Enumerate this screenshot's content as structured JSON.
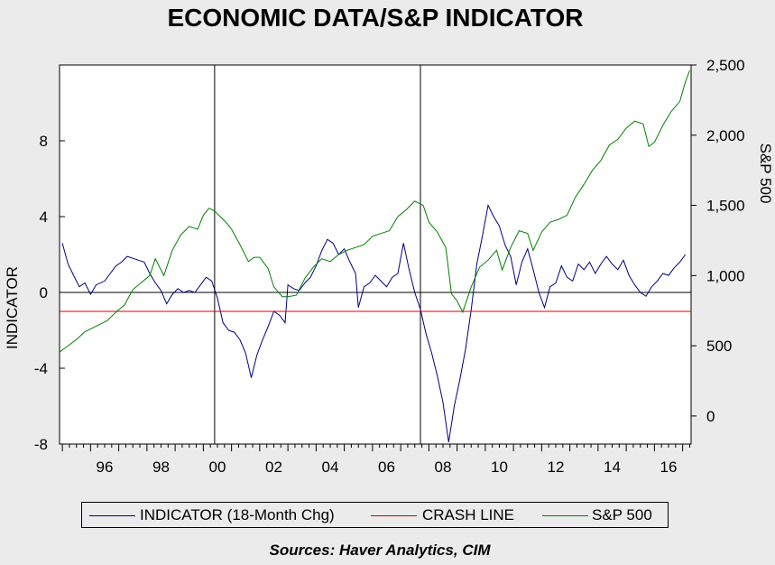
{
  "chart_data": {
    "type": "line",
    "title": "ECONOMIC DATA/S&P INDICATOR",
    "source": "Sources:  Haver Analytics, CIM",
    "left_axis": {
      "label": "INDICATOR",
      "range": [
        -8,
        12
      ],
      "ticks": [
        -8,
        -4,
        0,
        4,
        8
      ],
      "tick_labels": [
        "-8",
        "-4",
        "0",
        "4",
        "8"
      ]
    },
    "right_axis": {
      "label": "S&P 500",
      "range": [
        -200,
        2500
      ],
      "ticks": [
        0,
        500,
        1000,
        1500,
        2000,
        2500
      ],
      "tick_labels": [
        "0",
        "500",
        "1,000",
        "1,500",
        "2,000",
        "2,500"
      ]
    },
    "x_axis": {
      "range": [
        1994.9,
        2017.3
      ],
      "tick_years": [
        1996,
        1998,
        2000,
        2002,
        2004,
        2006,
        2008,
        2010,
        2012,
        2014,
        2016
      ],
      "tick_labels": [
        "96",
        "98",
        "00",
        "02",
        "04",
        "06",
        "08",
        "10",
        "12",
        "14",
        "16"
      ]
    },
    "vertical_lines": [
      2000.4,
      2007.7
    ],
    "zero_line": 0,
    "grid": false,
    "legend_position": "bottom",
    "series": [
      {
        "name": "INDICATOR (18-Month Chg)",
        "axis": "left",
        "color": "#000080",
        "points": [
          [
            1995.0,
            2.6
          ],
          [
            1995.2,
            1.5
          ],
          [
            1995.4,
            0.9
          ],
          [
            1995.6,
            0.3
          ],
          [
            1995.8,
            0.5
          ],
          [
            1996.0,
            -0.1
          ],
          [
            1996.2,
            0.4
          ],
          [
            1996.5,
            0.6
          ],
          [
            1996.7,
            1.0
          ],
          [
            1996.9,
            1.4
          ],
          [
            1997.1,
            1.6
          ],
          [
            1997.3,
            1.9
          ],
          [
            1997.5,
            1.8
          ],
          [
            1997.7,
            1.7
          ],
          [
            1997.9,
            1.6
          ],
          [
            1998.1,
            1.0
          ],
          [
            1998.3,
            0.5
          ],
          [
            1998.5,
            0.1
          ],
          [
            1998.7,
            -0.6
          ],
          [
            1998.9,
            -0.1
          ],
          [
            1999.1,
            0.2
          ],
          [
            1999.3,
            0.0
          ],
          [
            1999.5,
            0.1
          ],
          [
            1999.7,
            0.0
          ],
          [
            1999.9,
            0.4
          ],
          [
            2000.1,
            0.8
          ],
          [
            2000.3,
            0.6
          ],
          [
            2000.5,
            -0.3
          ],
          [
            2000.7,
            -1.6
          ],
          [
            2000.9,
            -2.0
          ],
          [
            2001.1,
            -2.1
          ],
          [
            2001.3,
            -2.5
          ],
          [
            2001.5,
            -3.2
          ],
          [
            2001.7,
            -4.5
          ],
          [
            2001.9,
            -3.3
          ],
          [
            2002.1,
            -2.5
          ],
          [
            2002.3,
            -1.8
          ],
          [
            2002.5,
            -1.0
          ],
          [
            2002.7,
            -1.2
          ],
          [
            2002.9,
            -1.6
          ],
          [
            2003.0,
            0.4
          ],
          [
            2003.2,
            0.2
          ],
          [
            2003.4,
            0.1
          ],
          [
            2003.6,
            0.5
          ],
          [
            2003.8,
            0.8
          ],
          [
            2004.0,
            1.4
          ],
          [
            2004.2,
            2.2
          ],
          [
            2004.4,
            2.8
          ],
          [
            2004.6,
            2.6
          ],
          [
            2004.8,
            2.0
          ],
          [
            2005.0,
            2.3
          ],
          [
            2005.2,
            1.6
          ],
          [
            2005.4,
            1.0
          ],
          [
            2005.5,
            -0.8
          ],
          [
            2005.7,
            0.3
          ],
          [
            2005.9,
            0.5
          ],
          [
            2006.1,
            0.9
          ],
          [
            2006.3,
            0.6
          ],
          [
            2006.5,
            0.3
          ],
          [
            2006.7,
            0.8
          ],
          [
            2006.9,
            1.0
          ],
          [
            2007.1,
            2.6
          ],
          [
            2007.3,
            1.2
          ],
          [
            2007.5,
            0.0
          ],
          [
            2007.7,
            -0.9
          ],
          [
            2007.9,
            -2.2
          ],
          [
            2008.1,
            -3.2
          ],
          [
            2008.3,
            -4.4
          ],
          [
            2008.5,
            -5.8
          ],
          [
            2008.7,
            -7.9
          ],
          [
            2008.9,
            -6.0
          ],
          [
            2009.1,
            -4.6
          ],
          [
            2009.3,
            -3.0
          ],
          [
            2009.5,
            -0.9
          ],
          [
            2009.7,
            1.5
          ],
          [
            2009.9,
            3.0
          ],
          [
            2010.1,
            4.6
          ],
          [
            2010.3,
            4.0
          ],
          [
            2010.5,
            3.5
          ],
          [
            2010.7,
            2.5
          ],
          [
            2010.9,
            1.9
          ],
          [
            2011.1,
            0.4
          ],
          [
            2011.3,
            1.6
          ],
          [
            2011.5,
            2.3
          ],
          [
            2011.7,
            1.2
          ],
          [
            2011.9,
            0.0
          ],
          [
            2012.1,
            -0.8
          ],
          [
            2012.3,
            0.3
          ],
          [
            2012.5,
            0.5
          ],
          [
            2012.7,
            1.4
          ],
          [
            2012.9,
            0.8
          ],
          [
            2013.1,
            0.6
          ],
          [
            2013.3,
            1.5
          ],
          [
            2013.5,
            1.2
          ],
          [
            2013.7,
            1.6
          ],
          [
            2013.9,
            1.0
          ],
          [
            2014.1,
            1.5
          ],
          [
            2014.3,
            1.9
          ],
          [
            2014.5,
            1.5
          ],
          [
            2014.7,
            1.2
          ],
          [
            2014.9,
            1.7
          ],
          [
            2015.1,
            0.9
          ],
          [
            2015.3,
            0.4
          ],
          [
            2015.5,
            0.0
          ],
          [
            2015.7,
            -0.2
          ],
          [
            2015.9,
            0.3
          ],
          [
            2016.1,
            0.6
          ],
          [
            2016.3,
            1.0
          ],
          [
            2016.5,
            0.9
          ],
          [
            2016.7,
            1.3
          ],
          [
            2016.9,
            1.6
          ],
          [
            2017.1,
            2.0
          ]
        ]
      },
      {
        "name": "CRASH LINE",
        "axis": "left",
        "color": "#d40000",
        "constant": -1.0
      },
      {
        "name": "S&P 500",
        "axis": "right",
        "color": "#008000",
        "points": [
          [
            1994.9,
            455
          ],
          [
            1995.2,
            500
          ],
          [
            1995.5,
            545
          ],
          [
            1995.8,
            600
          ],
          [
            1996.0,
            620
          ],
          [
            1996.3,
            650
          ],
          [
            1996.6,
            680
          ],
          [
            1996.9,
            740
          ],
          [
            1997.2,
            790
          ],
          [
            1997.5,
            900
          ],
          [
            1997.8,
            950
          ],
          [
            1998.1,
            1000
          ],
          [
            1998.3,
            1120
          ],
          [
            1998.6,
            1000
          ],
          [
            1998.9,
            1180
          ],
          [
            1999.2,
            1290
          ],
          [
            1999.5,
            1350
          ],
          [
            1999.8,
            1330
          ],
          [
            2000.0,
            1430
          ],
          [
            2000.2,
            1480
          ],
          [
            2000.4,
            1460
          ],
          [
            2000.6,
            1420
          ],
          [
            2000.8,
            1380
          ],
          [
            2001.0,
            1330
          ],
          [
            2001.3,
            1220
          ],
          [
            2001.6,
            1100
          ],
          [
            2001.8,
            1130
          ],
          [
            2002.0,
            1130
          ],
          [
            2002.3,
            1050
          ],
          [
            2002.5,
            920
          ],
          [
            2002.8,
            850
          ],
          [
            2003.0,
            850
          ],
          [
            2003.3,
            860
          ],
          [
            2003.6,
            980
          ],
          [
            2003.9,
            1060
          ],
          [
            2004.2,
            1120
          ],
          [
            2004.5,
            1100
          ],
          [
            2004.8,
            1150
          ],
          [
            2005.1,
            1180
          ],
          [
            2005.4,
            1200
          ],
          [
            2005.7,
            1220
          ],
          [
            2006.0,
            1280
          ],
          [
            2006.3,
            1300
          ],
          [
            2006.6,
            1320
          ],
          [
            2006.9,
            1420
          ],
          [
            2007.2,
            1470
          ],
          [
            2007.5,
            1530
          ],
          [
            2007.8,
            1500
          ],
          [
            2008.0,
            1380
          ],
          [
            2008.3,
            1310
          ],
          [
            2008.6,
            1200
          ],
          [
            2008.8,
            870
          ],
          [
            2009.0,
            820
          ],
          [
            2009.2,
            740
          ],
          [
            2009.5,
            920
          ],
          [
            2009.8,
            1060
          ],
          [
            2010.1,
            1110
          ],
          [
            2010.4,
            1180
          ],
          [
            2010.6,
            1040
          ],
          [
            2010.9,
            1200
          ],
          [
            2011.2,
            1320
          ],
          [
            2011.5,
            1300
          ],
          [
            2011.7,
            1180
          ],
          [
            2012.0,
            1310
          ],
          [
            2012.3,
            1380
          ],
          [
            2012.6,
            1400
          ],
          [
            2012.9,
            1430
          ],
          [
            2013.2,
            1560
          ],
          [
            2013.5,
            1650
          ],
          [
            2013.8,
            1750
          ],
          [
            2014.1,
            1820
          ],
          [
            2014.4,
            1930
          ],
          [
            2014.7,
            1970
          ],
          [
            2015.0,
            2050
          ],
          [
            2015.3,
            2100
          ],
          [
            2015.6,
            2080
          ],
          [
            2015.8,
            1920
          ],
          [
            2016.0,
            1950
          ],
          [
            2016.3,
            2070
          ],
          [
            2016.6,
            2170
          ],
          [
            2016.9,
            2240
          ],
          [
            2017.1,
            2380
          ],
          [
            2017.25,
            2460
          ]
        ]
      }
    ]
  }
}
